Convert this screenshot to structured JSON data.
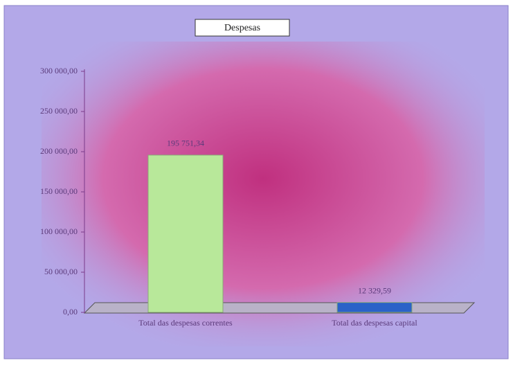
{
  "chart_data": {
    "type": "bar",
    "title": "Despesas",
    "categories": [
      "Total das despesas correntes",
      "Total das despesas capital"
    ],
    "values": [
      195751.34,
      12329.59
    ],
    "value_labels": [
      "195 751,34",
      "12 329,59"
    ],
    "colors": [
      "#b8e89a",
      "#2a62c8"
    ],
    "ylim": [
      0,
      300000
    ],
    "yticks": [
      {
        "value": 0,
        "label": "0,00"
      },
      {
        "value": 50000,
        "label": "50 000,00"
      },
      {
        "value": 100000,
        "label": "100 000,00"
      },
      {
        "value": 150000,
        "label": "150 000,00"
      },
      {
        "value": 200000,
        "label": "200 000,00"
      },
      {
        "value": 250000,
        "label": "250 000,00"
      },
      {
        "value": 300000,
        "label": "300 000,00"
      }
    ]
  }
}
